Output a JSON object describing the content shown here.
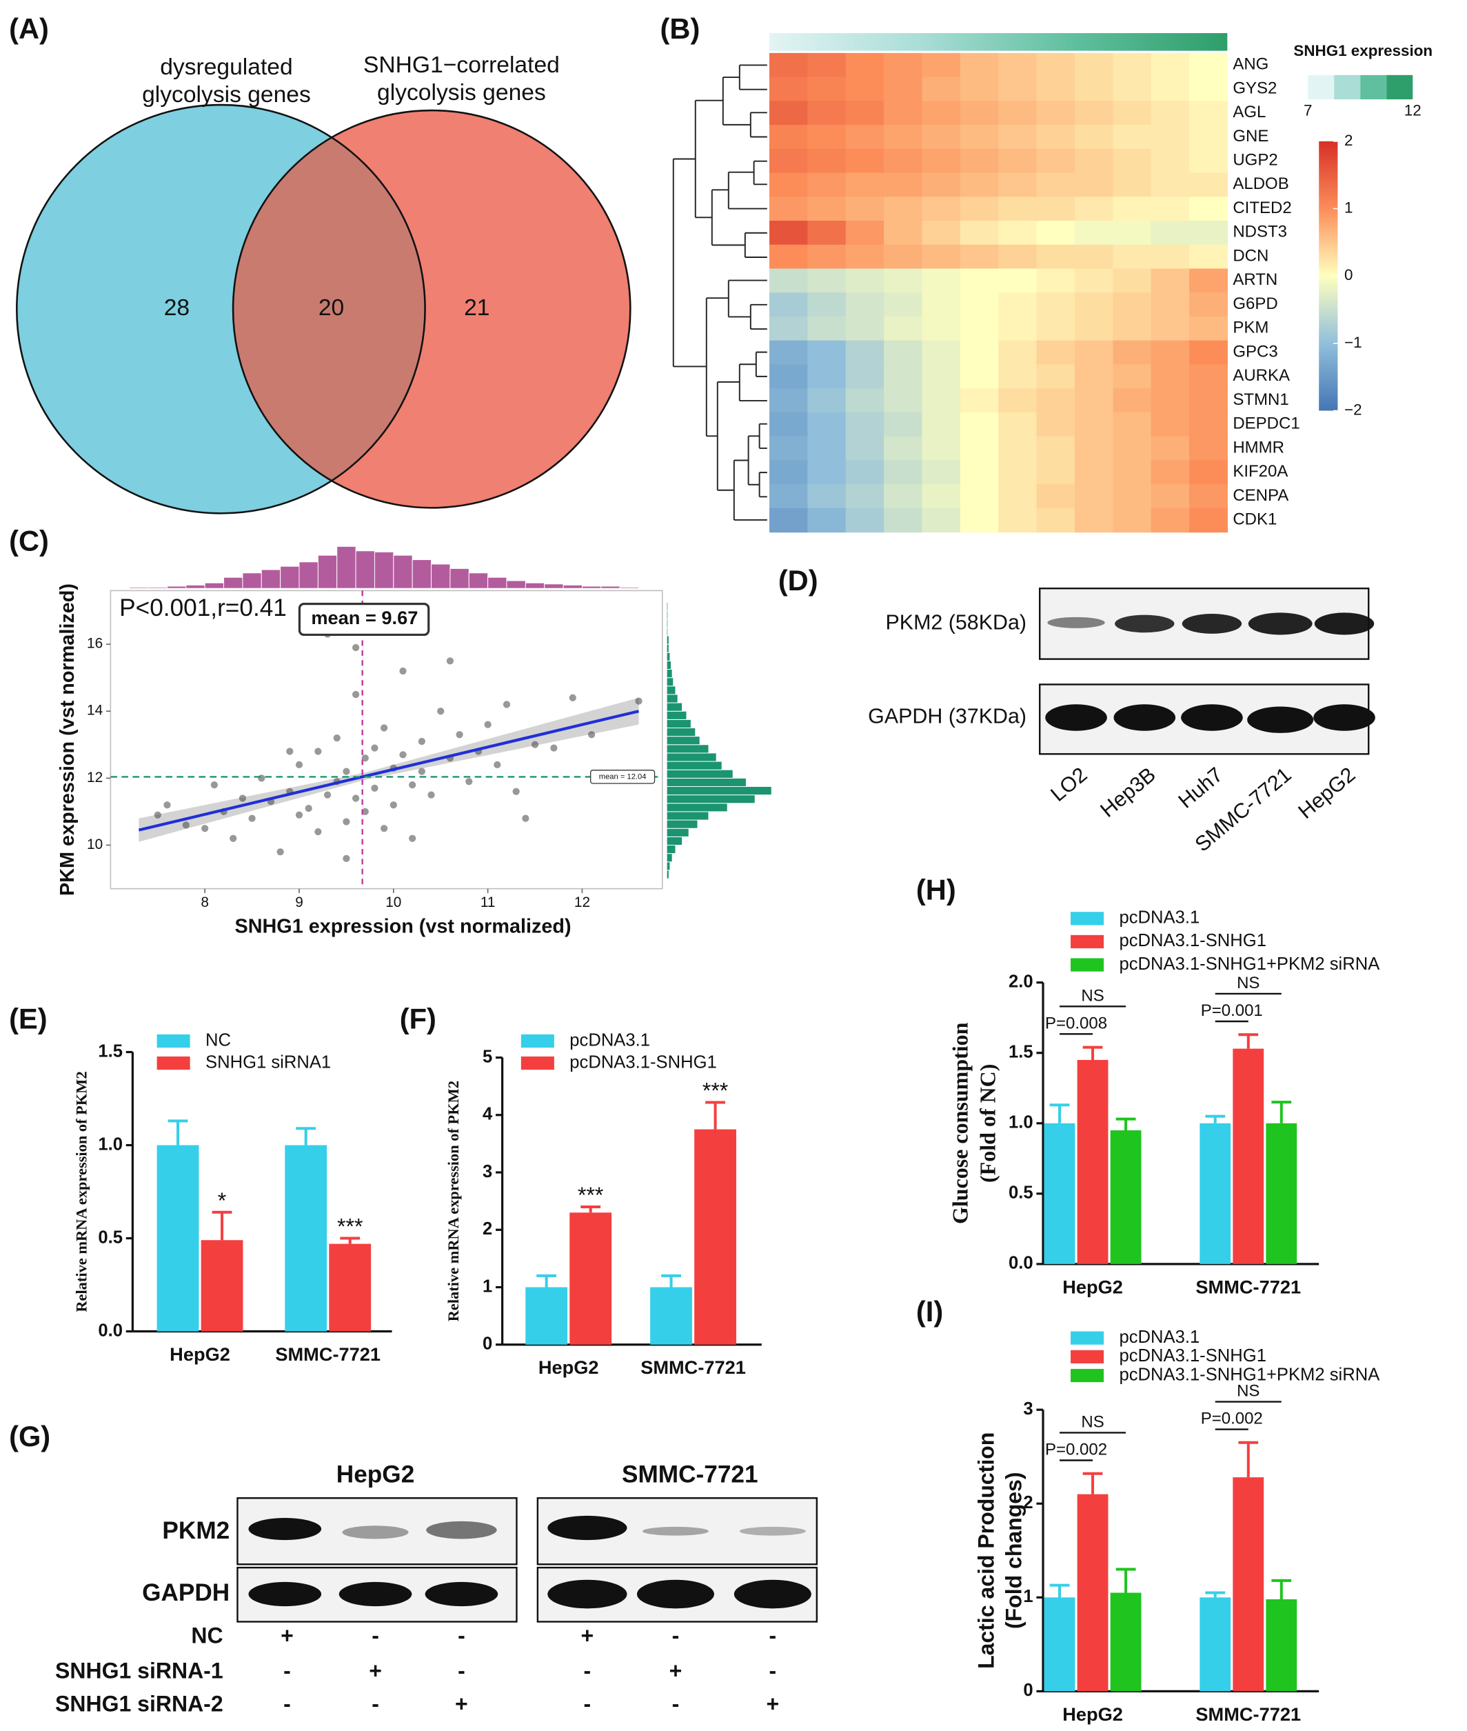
{
  "chart_data": [
    {
      "label": "(A)",
      "type": "venn",
      "sets": [
        [
          "dysregulated",
          "glycolysis genes"
        ],
        [
          "SNHG1−correlated",
          "glycolysis genes"
        ]
      ],
      "values": [
        28,
        20,
        21
      ],
      "colors": [
        "#7ecfe0",
        "#ef8072"
      ],
      "overlap_color": "#c97b70"
    },
    {
      "label": "(B)",
      "type": "heatmap",
      "rows": [
        "ANG",
        "GYS2",
        "AGL",
        "GNE",
        "UGP2",
        "ALDOB",
        "CITED2",
        "NDST3",
        "DCN",
        "ARTN",
        "G6PD",
        "PKM",
        "GPC3",
        "AURKA",
        "STMN1",
        "DEPDC1",
        "HMMR",
        "KIF20A",
        "CENPA",
        "CDK1"
      ],
      "values": [
        [
          1.3,
          1.2,
          1.0,
          0.9,
          0.8,
          0.6,
          0.5,
          0.4,
          0.3,
          0.2,
          0.1,
          0.0
        ],
        [
          1.2,
          1.1,
          1.0,
          0.9,
          0.7,
          0.6,
          0.5,
          0.4,
          0.3,
          0.2,
          0.1,
          0.0
        ],
        [
          1.4,
          1.2,
          1.1,
          0.9,
          0.8,
          0.7,
          0.6,
          0.5,
          0.4,
          0.3,
          0.2,
          0.1
        ],
        [
          1.1,
          1.0,
          0.9,
          0.8,
          0.7,
          0.6,
          0.5,
          0.4,
          0.3,
          0.2,
          0.2,
          0.1
        ],
        [
          1.2,
          1.1,
          1.0,
          0.9,
          0.8,
          0.7,
          0.6,
          0.5,
          0.4,
          0.3,
          0.2,
          0.1
        ],
        [
          1.0,
          0.9,
          0.8,
          0.8,
          0.7,
          0.6,
          0.5,
          0.4,
          0.4,
          0.3,
          0.2,
          0.2
        ],
        [
          0.9,
          0.8,
          0.7,
          0.6,
          0.5,
          0.4,
          0.3,
          0.3,
          0.2,
          0.1,
          0.1,
          0.0
        ],
        [
          1.6,
          1.3,
          0.9,
          0.6,
          0.4,
          0.2,
          0.1,
          0.0,
          -0.1,
          -0.1,
          -0.2,
          -0.2
        ],
        [
          1.0,
          0.9,
          0.8,
          0.7,
          0.6,
          0.5,
          0.4,
          0.3,
          0.3,
          0.2,
          0.2,
          0.1
        ],
        [
          -0.5,
          -0.4,
          -0.3,
          -0.2,
          -0.1,
          0.0,
          0.0,
          0.1,
          0.2,
          0.3,
          0.5,
          0.8
        ],
        [
          -0.8,
          -0.6,
          -0.4,
          -0.3,
          -0.1,
          0.0,
          0.1,
          0.2,
          0.3,
          0.4,
          0.5,
          0.7
        ],
        [
          -0.7,
          -0.5,
          -0.4,
          -0.2,
          -0.1,
          0.0,
          0.1,
          0.2,
          0.3,
          0.4,
          0.5,
          0.6
        ],
        [
          -1.2,
          -1.0,
          -0.7,
          -0.4,
          -0.2,
          0.0,
          0.2,
          0.4,
          0.5,
          0.7,
          0.8,
          1.0
        ],
        [
          -1.3,
          -1.0,
          -0.7,
          -0.4,
          -0.2,
          0.0,
          0.2,
          0.3,
          0.5,
          0.6,
          0.8,
          0.9
        ],
        [
          -1.2,
          -0.9,
          -0.6,
          -0.4,
          -0.2,
          0.1,
          0.3,
          0.4,
          0.5,
          0.7,
          0.8,
          0.9
        ],
        [
          -1.3,
          -1.0,
          -0.7,
          -0.5,
          -0.2,
          0.0,
          0.2,
          0.4,
          0.5,
          0.6,
          0.8,
          0.9
        ],
        [
          -1.2,
          -1.0,
          -0.7,
          -0.4,
          -0.2,
          0.0,
          0.2,
          0.3,
          0.5,
          0.6,
          0.7,
          0.9
        ],
        [
          -1.3,
          -1.0,
          -0.8,
          -0.5,
          -0.3,
          0.0,
          0.2,
          0.3,
          0.5,
          0.6,
          0.8,
          1.0
        ],
        [
          -1.2,
          -0.9,
          -0.7,
          -0.4,
          -0.2,
          0.0,
          0.2,
          0.4,
          0.5,
          0.6,
          0.7,
          0.9
        ],
        [
          -1.4,
          -1.1,
          -0.8,
          -0.5,
          -0.3,
          0.0,
          0.2,
          0.3,
          0.5,
          0.6,
          0.8,
          1.0
        ]
      ],
      "colorscale": [
        "#4575b4",
        "#91bfdb",
        "#ffffbf",
        "#fc8d59",
        "#d73027"
      ],
      "zlim": [
        -2,
        2
      ],
      "zticks": [
        2,
        1,
        0,
        {
          "value": -1,
          "label": "−1"
        },
        {
          "value": -2,
          "label": "−2"
        }
      ],
      "annotation": {
        "title": "SNHG1 expression",
        "range": [
          7,
          12
        ],
        "ticks": [
          7,
          12
        ],
        "colors": [
          "#e3f4f4",
          "#a9ddd6",
          "#5fbf9e",
          "#2e9e6a"
        ]
      }
    },
    {
      "label": "(C)",
      "type": "scatter",
      "annotation": "P<0.001,r=0.41",
      "xlabel": "SNHG1 expression (vst normalized)",
      "ylabel": "PKM expression (vst normalized)",
      "xlim": [
        7,
        12.85
      ],
      "ylim": [
        8.7,
        17.6
      ],
      "xticks": [
        8,
        9,
        10,
        11,
        12
      ],
      "yticks": [
        10,
        12,
        14,
        16
      ],
      "x": [
        7.5,
        7.6,
        7.8,
        8.0,
        8.1,
        8.2,
        8.3,
        8.4,
        8.5,
        8.6,
        8.7,
        8.8,
        8.9,
        9.0,
        9.0,
        9.1,
        9.2,
        9.2,
        9.3,
        9.4,
        9.4,
        9.5,
        9.5,
        9.6,
        9.6,
        9.7,
        9.7,
        9.8,
        9.8,
        9.9,
        9.9,
        10.0,
        10.0,
        10.1,
        10.1,
        10.2,
        10.3,
        10.3,
        10.4,
        10.5,
        10.6,
        10.7,
        10.8,
        10.9,
        11.0,
        11.1,
        11.2,
        11.3,
        11.5,
        11.7,
        11.9,
        12.1,
        12.6,
        9.3,
        9.6,
        10.2,
        9.5,
        8.9,
        10.6,
        11.4
      ],
      "y": [
        10.9,
        11.2,
        10.6,
        10.5,
        11.8,
        11.0,
        10.2,
        11.4,
        10.8,
        12.0,
        11.3,
        9.8,
        11.6,
        12.4,
        10.9,
        11.1,
        12.8,
        10.4,
        11.5,
        13.2,
        11.9,
        12.2,
        10.7,
        14.5,
        11.4,
        12.6,
        11.0,
        12.9,
        11.7,
        13.5,
        10.5,
        12.3,
        11.2,
        15.2,
        12.7,
        11.8,
        13.1,
        12.2,
        11.5,
        14.0,
        12.6,
        13.3,
        11.9,
        12.8,
        13.6,
        12.4,
        14.2,
        11.6,
        13.0,
        12.9,
        14.4,
        13.3,
        14.3,
        16.3,
        15.9,
        10.2,
        9.6,
        12.8,
        15.5,
        10.8
      ],
      "color": "#444444",
      "fit": {
        "x": [
          7.3,
          9.7,
          12.6
        ],
        "y": [
          10.45,
          12.06,
          14.0
        ],
        "lower": [
          10.1,
          11.95,
          13.6
        ],
        "upper": [
          10.8,
          12.17,
          14.4
        ],
        "color": "#1f2fd6"
      },
      "xmean": 9.67,
      "xmean_label": "mean = 9.67",
      "xmean_color": "#c0399a",
      "ymean": 12.04,
      "ymean_label": "mean = 12.04",
      "ymean_color": "#1b9470",
      "x_hist": {
        "bins": [
          7.2,
          7.4,
          7.6,
          7.8,
          8,
          8.2,
          8.4,
          8.6,
          8.8,
          9,
          9.2,
          9.4,
          9.6,
          9.8,
          10,
          10.2,
          10.4,
          10.6,
          10.8,
          11,
          11.2,
          11.4,
          11.6,
          11.8,
          12,
          12.2,
          12.4,
          12.6
        ],
        "counts": [
          1,
          1,
          2,
          3,
          5,
          10,
          14,
          17,
          20,
          24,
          30,
          38,
          34,
          33,
          30,
          26,
          22,
          18,
          14,
          10,
          7,
          5,
          4,
          3,
          2,
          2,
          1
        ],
        "color": "#b35c9d"
      },
      "y_hist": {
        "bins": [
          9,
          9.25,
          9.5,
          9.75,
          10,
          10.25,
          10.5,
          10.75,
          11,
          11.25,
          11.5,
          11.75,
          12,
          12.25,
          12.5,
          12.75,
          13,
          13.25,
          13.5,
          13.75,
          14,
          14.25,
          14.5,
          14.75,
          15,
          15.25,
          15.5,
          15.75,
          16,
          16.25,
          16.5,
          16.75,
          17,
          17.25
        ],
        "counts": [
          2,
          3,
          5,
          8,
          14,
          20,
          28,
          38,
          55,
          80,
          95,
          72,
          60,
          50,
          45,
          38,
          30,
          26,
          22,
          18,
          14,
          10,
          8,
          6,
          5,
          4,
          3,
          2,
          2,
          1,
          1,
          1,
          1
        ],
        "color": "#1b9470"
      }
    },
    {
      "label": "(D)",
      "type": "blot",
      "rows": [
        "PKM2 (58KDa)",
        "GAPDH (37KDa)"
      ],
      "lanes": [
        "LO2",
        "Hep3B",
        "Huh7",
        "SMMC-7721",
        "HepG2"
      ]
    },
    {
      "label": "(E)",
      "type": "bar",
      "ylabel": [
        "Relative mRNA expression of PKM2"
      ],
      "categories": [
        "HepG2",
        "SMMC-7721"
      ],
      "series": [
        {
          "name": "NC",
          "color": "#35cfe9",
          "values": [
            1.0,
            1.0
          ],
          "errors": [
            0.13,
            0.09
          ]
        },
        {
          "name": "SNHG1 siRNA1",
          "color": "#f43f3f",
          "values": [
            0.49,
            0.47
          ],
          "errors": [
            0.15,
            0.03
          ]
        }
      ],
      "annotations": [
        "*",
        "***"
      ],
      "ylim": [
        0,
        1.5
      ],
      "yticks": [
        {
          "value": 0,
          "label": "0.0"
        },
        0.5,
        {
          "value": 1,
          "label": "1.0"
        },
        1.5
      ]
    },
    {
      "label": "(F)",
      "type": "bar",
      "ylabel": [
        "Relative mRNA expression of PKM2"
      ],
      "categories": [
        "HepG2",
        "SMMC-7721"
      ],
      "series": [
        {
          "name": "pcDNA3.1",
          "color": "#35cfe9",
          "values": [
            1.0,
            1.0
          ],
          "errors": [
            0.2,
            0.2
          ]
        },
        {
          "name": "pcDNA3.1-SNHG1",
          "color": "#f43f3f",
          "values": [
            2.3,
            3.75
          ],
          "errors": [
            0.1,
            0.47
          ]
        }
      ],
      "annotations": [
        "***",
        "***"
      ],
      "ylim": [
        0,
        5
      ],
      "yticks": [
        0,
        1,
        2,
        3,
        4,
        5
      ]
    },
    {
      "label": "(G)",
      "type": "blot",
      "groups": [
        "HepG2",
        "SMMC-7721"
      ],
      "rows": [
        "PKM2",
        "GAPDH"
      ],
      "conditions": [
        {
          "name": "NC",
          "signs": [
            "+",
            "-",
            "-",
            "+",
            "-",
            "-"
          ]
        },
        {
          "name": "SNHG1 siRNA-1",
          "signs": [
            "-",
            "+",
            "-",
            "-",
            "+",
            "-"
          ]
        },
        {
          "name": "SNHG1 siRNA-2",
          "signs": [
            "-",
            "-",
            "+",
            "-",
            "-",
            "+"
          ]
        }
      ]
    },
    {
      "label": "(H)",
      "type": "bar",
      "ylabel": [
        "Glucose consumption",
        "(Fold of NC)"
      ],
      "categories": [
        "HepG2",
        "SMMC-7721"
      ],
      "series": [
        {
          "name": "pcDNA3.1",
          "color": "#35cfe9",
          "values": [
            1.0,
            1.0
          ],
          "errors": [
            0.13,
            0.05
          ]
        },
        {
          "name": "pcDNA3.1-SNHG1",
          "color": "#f43f3f",
          "values": [
            1.45,
            1.53
          ],
          "errors": [
            0.09,
            0.1
          ]
        },
        {
          "name": "pcDNA3.1-SNHG1+PKM2 siRNA",
          "color": "#1fc41f",
          "values": [
            0.95,
            1.0
          ],
          "errors": [
            0.08,
            0.15
          ]
        }
      ],
      "brackets": [
        [
          "P=0.008",
          "NS"
        ],
        [
          "P=0.001",
          "NS"
        ]
      ],
      "ylim": [
        0,
        2
      ],
      "yticks": [
        {
          "value": 0,
          "label": "0.0"
        },
        0.5,
        {
          "value": 1,
          "label": "1.0"
        },
        1.5,
        {
          "value": 2,
          "label": "2.0"
        }
      ]
    },
    {
      "label": "(I)",
      "type": "bar",
      "ylabel": [
        "Lactic acid Production",
        "(Fold changes)"
      ],
      "categories": [
        "HepG2",
        "SMMC-7721"
      ],
      "series": [
        {
          "name": "pcDNA3.1",
          "color": "#35cfe9",
          "values": [
            1.0,
            1.0
          ],
          "errors": [
            0.13,
            0.05
          ]
        },
        {
          "name": "pcDNA3.1-SNHG1",
          "color": "#f43f3f",
          "values": [
            2.1,
            2.28
          ],
          "errors": [
            0.22,
            0.37
          ]
        },
        {
          "name": "pcDNA3.1-SNHG1+PKM2 siRNA",
          "color": "#1fc41f",
          "values": [
            1.05,
            0.98
          ],
          "errors": [
            0.25,
            0.2
          ]
        }
      ],
      "brackets": [
        [
          "P=0.002",
          "NS"
        ],
        [
          "P=0.002",
          "NS"
        ]
      ],
      "ylim": [
        0,
        3
      ],
      "yticks": [
        0,
        1,
        2,
        3
      ]
    }
  ]
}
